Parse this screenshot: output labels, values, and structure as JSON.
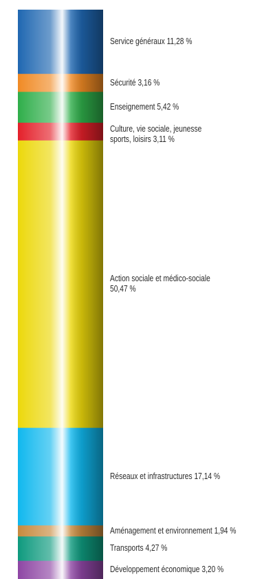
{
  "chart_data": {
    "type": "bar",
    "orientation": "stacked-vertical",
    "title": "",
    "unit": "%",
    "segments": [
      {
        "label": "Service généraux 11,28 %",
        "value": 11.28,
        "color": "#1f67b1"
      },
      {
        "label": "Sécurité 3,16 %",
        "value": 3.16,
        "color": "#f08a24"
      },
      {
        "label": "Enseignement 5,42 %",
        "value": 5.42,
        "color": "#2fae4a"
      },
      {
        "label": [
          "Culture, vie sociale, jeunesse",
          "sports, loisirs 3,11 %"
        ],
        "value": 3.11,
        "color": "#e4202a"
      },
      {
        "label": [
          "Action sociale et médico-sociale",
          "50,47 %"
        ],
        "value": 50.47,
        "color": "#ecd80b"
      },
      {
        "label": "Réseaux et infrastructures 17,14 %",
        "value": 17.14,
        "color": "#10b8ee"
      },
      {
        "label": "Aménagement et environnement 1,94 %",
        "value": 1.94,
        "color": "#c78a3e"
      },
      {
        "label": "Transports 4,27 %",
        "value": 4.27,
        "color": "#0e9a7e"
      },
      {
        "label": "Développement économique 3,20 %",
        "value": 3.2,
        "color": "#8e46a4"
      }
    ]
  }
}
